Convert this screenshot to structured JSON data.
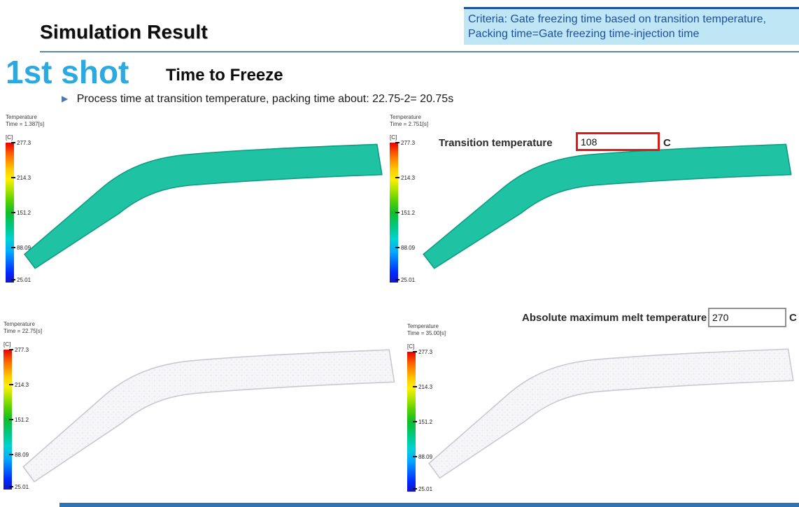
{
  "header": {
    "title": "Simulation Result",
    "criteria": {
      "line1": "Criteria: Gate freezing time based on transition temperature,",
      "line2": "Packing time=Gate freezing time-injection time"
    }
  },
  "section": {
    "shot": "1st shot",
    "subtitle": "Time to Freeze",
    "bullet": "Process time at transition temperature, packing time about: 22.75-2= 20.75s"
  },
  "icons": {
    "bullet_arrow": "▶"
  },
  "legend": {
    "title": "Temperature",
    "unit": "[C]",
    "ticks": [
      "277.3",
      "214.3",
      "151.2",
      "88.09",
      "25.01"
    ]
  },
  "panels": [
    {
      "time_label": "Time = 1.387[s]"
    },
    {
      "time_label": "Time = 2.751[s]",
      "field": {
        "label": "Transition temperature",
        "value": "108",
        "unit": "C"
      }
    },
    {
      "time_label": "Time = 22.75[s]"
    },
    {
      "time_label": "Time = 35.00[s]",
      "field": {
        "label": "Absolute maximum melt temperature",
        "value": "270",
        "unit": "C"
      }
    }
  ],
  "colors": {
    "melt_teal": "#1fc2a2",
    "melt_teal_dark": "#0d9b80",
    "accent_cyan": "#2ba9e0",
    "criteria_bg": "#bfe6f4",
    "criteria_text": "#1d4f9e",
    "highlight_red": "#e01818",
    "footer_bar": "#2e74b5"
  }
}
